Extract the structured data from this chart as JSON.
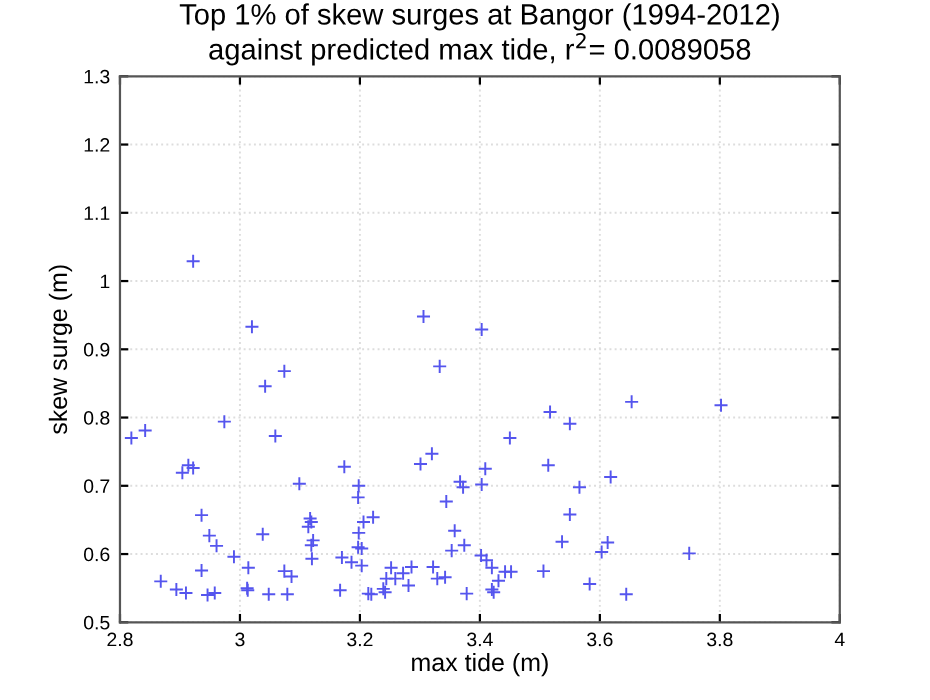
{
  "chart_data": {
    "type": "scatter",
    "title": "Top 1% of skew surges at Bangor (1994-2012)\nagainst predicted max tide, r$^{2}$= 0.0089058",
    "xlabel": "max tide (m)",
    "ylabel": "skew surge (m)",
    "x": [
      2.922,
      3.02,
      3.042,
      3.074,
      3.059,
      2.974,
      2.819,
      2.842,
      2.904,
      2.914,
      2.922,
      3.099,
      3.174,
      3.198,
      3.197,
      2.936,
      2.949,
      2.961,
      3.038,
      3.117,
      3.119,
      3.114,
      3.122,
      3.119,
      3.12,
      2.99,
      3.014,
      2.936,
      2.868,
      2.894,
      2.91,
      2.946,
      2.958,
      3.012,
      3.013,
      3.048,
      3.074,
      3.086,
      3.079,
      3.167,
      3.17,
      3.186,
      3.198,
      3.197,
      3.203,
      3.206,
      3.203,
      3.214,
      3.306,
      3.403,
      3.333,
      3.517,
      3.55,
      3.45,
      3.301,
      3.32,
      3.409,
      3.514,
      3.618,
      3.367,
      3.372,
      3.403,
      3.566,
      3.344,
      3.222,
      3.55,
      3.358,
      3.353,
      3.374,
      3.537,
      3.603,
      3.402,
      3.411,
      3.42,
      3.431,
      3.442,
      3.452,
      3.506,
      3.42,
      3.423,
      3.378,
      3.322,
      3.329,
      3.342,
      3.286,
      3.281,
      3.252,
      3.244,
      3.259,
      3.239,
      3.242,
      3.219,
      3.272,
      3.583,
      3.653,
      3.802,
      3.613,
      3.749,
      3.644
    ],
    "series": [
      {
        "color": "#5555ee",
        "values": [
          1.029,
          0.933,
          0.846,
          0.868,
          0.773,
          0.794,
          0.77,
          0.781,
          0.719,
          0.73,
          0.726,
          0.703,
          0.728,
          0.7,
          0.683,
          0.657,
          0.627,
          0.612,
          0.629,
          0.652,
          0.647,
          0.64,
          0.62,
          0.613,
          0.593,
          0.596,
          0.58,
          0.576,
          0.56,
          0.548,
          0.543,
          0.54,
          0.543,
          0.55,
          0.547,
          0.541,
          0.575,
          0.567,
          0.541,
          0.547,
          0.595,
          0.588,
          0.631,
          0.61,
          0.608,
          0.647,
          0.583,
          0.542,
          0.948,
          0.929,
          0.875,
          0.808,
          0.791,
          0.77,
          0.732,
          0.747,
          0.725,
          0.73,
          0.713,
          0.706,
          0.698,
          0.702,
          0.698,
          0.677,
          0.654,
          0.658,
          0.634,
          0.605,
          0.613,
          0.618,
          0.603,
          0.598,
          0.591,
          0.58,
          0.561,
          0.574,
          0.574,
          0.575,
          0.548,
          0.544,
          0.542,
          0.581,
          0.564,
          0.566,
          0.581,
          0.554,
          0.58,
          0.564,
          0.564,
          0.549,
          0.544,
          0.541,
          0.572,
          0.556,
          0.823,
          0.818,
          0.617,
          0.601,
          0.541
        ]
      }
    ],
    "xlim": [
      2.8,
      4
    ],
    "ylim": [
      0.5,
      1.3
    ],
    "xticks": [
      2.8,
      3,
      3.2,
      3.4,
      3.6,
      3.8,
      4
    ],
    "yticks": [
      0.5,
      0.6,
      0.7,
      0.8,
      0.9,
      1,
      1.1,
      1.2,
      1.3
    ],
    "grid": true,
    "marker": "cross"
  }
}
